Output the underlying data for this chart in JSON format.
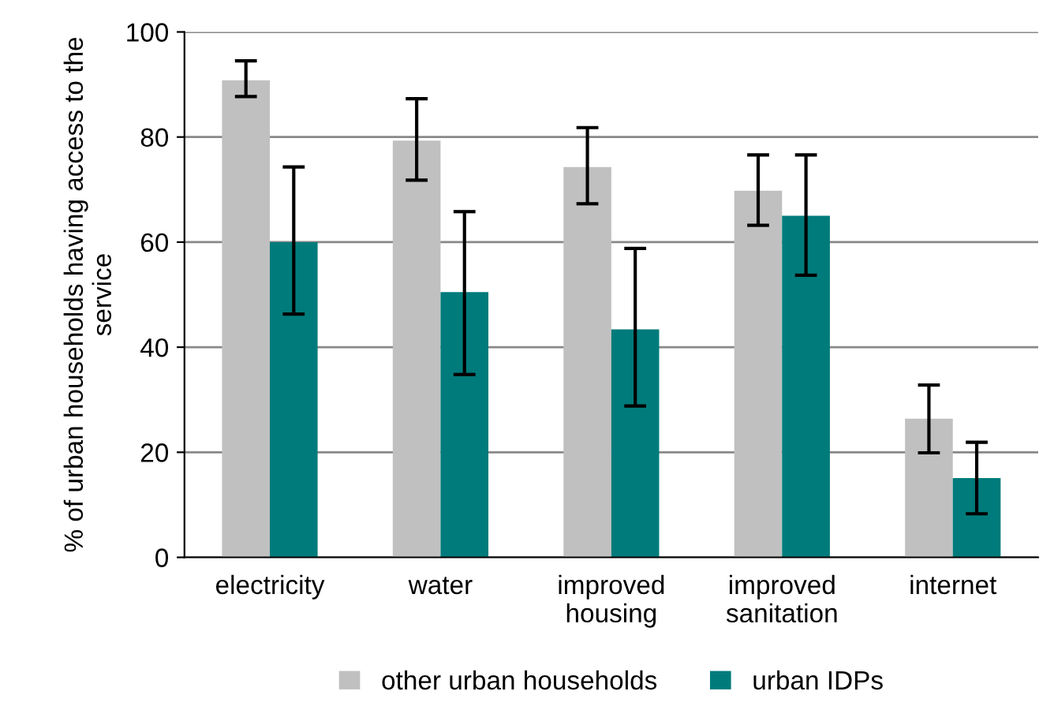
{
  "chart_data": {
    "type": "bar",
    "ylabel": "% of urban households having access to the service",
    "categories": [
      "electricity",
      "water",
      "improved\nhousing",
      "improved\nsanitation",
      "internet"
    ],
    "series": [
      {
        "name": "other urban households",
        "color": "#c0c0c0",
        "values": [
          90.8,
          79.3,
          74.3,
          69.8,
          26.4
        ],
        "errors": [
          [
            87.7,
            94.5
          ],
          [
            71.8,
            87.3
          ],
          [
            67.3,
            81.8
          ],
          [
            63.2,
            76.6
          ],
          [
            19.9,
            32.8
          ]
        ]
      },
      {
        "name": "urban IDPs",
        "color": "#007b7b",
        "values": [
          60,
          50.5,
          43.4,
          65,
          15.1
        ],
        "errors": [
          [
            46.3,
            74.3
          ],
          [
            34.8,
            65.8
          ],
          [
            28.8,
            58.8
          ],
          [
            53.7,
            76.6
          ],
          [
            8.3,
            21.9
          ]
        ]
      }
    ],
    "ylim": [
      0,
      100
    ],
    "yticks": [
      0,
      20,
      40,
      60,
      80,
      100
    ],
    "grid": "y",
    "legend": "bottom"
  }
}
